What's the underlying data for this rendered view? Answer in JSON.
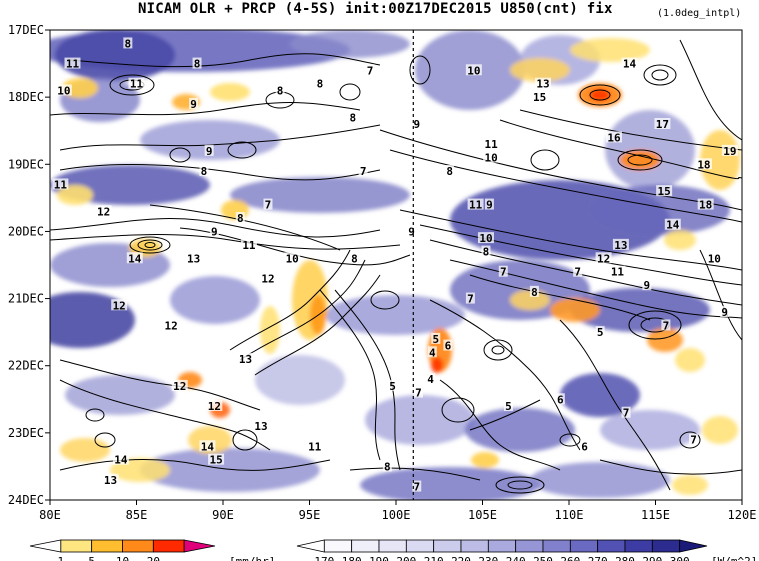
{
  "title": {
    "main": "NICAM  OLR + PRCP (4-5S) init:00Z17DEC2015 U850(cnt) fix",
    "sub": "(1.0deg_intpl)"
  },
  "chart_data": {
    "type": "heatmap",
    "title": "NICAM  OLR + PRCP (4-5S) init:00Z17DEC2015 U850(cnt) fix",
    "subtitle": "(1.0deg_intpl)",
    "x_ticks": [
      "80E",
      "85E",
      "90E",
      "95E",
      "100E",
      "105E",
      "110E",
      "115E",
      "120E"
    ],
    "x_values": [
      80,
      85,
      90,
      95,
      100,
      105,
      110,
      115,
      120
    ],
    "xlim": [
      80,
      120
    ],
    "y_ticks": [
      "17DEC",
      "18DEC",
      "19DEC",
      "20DEC",
      "21DEC",
      "22DEC",
      "23DEC",
      "24DEC"
    ],
    "y_values": [
      17,
      18,
      19,
      20,
      21,
      22,
      23,
      24
    ],
    "ylim": [
      17,
      24
    ],
    "reference_line_x": 101,
    "precip_colorbar": {
      "labels": [
        "1",
        "5",
        "10",
        "20"
      ],
      "unit": "[mm/hr]",
      "colors": [
        "#ffffff",
        "#ffe680",
        "#ffbe30",
        "#ff8a1a",
        "#ff2a00",
        "#e0007a"
      ]
    },
    "olr_colorbar": {
      "labels": [
        "170",
        "180",
        "190",
        "200",
        "210",
        "220",
        "230",
        "240",
        "250",
        "260",
        "270",
        "280",
        "290",
        "300"
      ],
      "unit": "[W/m^2]",
      "colors": [
        "#1a1a78",
        "#2b2b90",
        "#3c3ca4",
        "#5252b4",
        "#6a6ac2",
        "#8080cc",
        "#9696d6",
        "#aaaadf",
        "#bcbce6",
        "#cccced",
        "#dadaf2",
        "#e6e6f6",
        "#f0f0fa",
        "#f8f8fd",
        "#ffffff"
      ]
    },
    "contour_labels": [
      {
        "text": "8",
        "x": 84.5,
        "y": 17.2
      },
      {
        "text": "8",
        "x": 88.5,
        "y": 17.5
      },
      {
        "text": "11",
        "x": 81.3,
        "y": 17.5
      },
      {
        "text": "11",
        "x": 85.0,
        "y": 17.8
      },
      {
        "text": "10",
        "x": 80.8,
        "y": 17.9
      },
      {
        "text": "9",
        "x": 88.3,
        "y": 18.1
      },
      {
        "text": "8",
        "x": 93.3,
        "y": 17.9
      },
      {
        "text": "8",
        "x": 95.6,
        "y": 17.8
      },
      {
        "text": "7",
        "x": 98.5,
        "y": 17.6
      },
      {
        "text": "8",
        "x": 97.5,
        "y": 18.3
      },
      {
        "text": "9",
        "x": 101.2,
        "y": 18.4
      },
      {
        "text": "10",
        "x": 104.5,
        "y": 17.6
      },
      {
        "text": "13",
        "x": 108.5,
        "y": 17.8
      },
      {
        "text": "15",
        "x": 108.3,
        "y": 18.0
      },
      {
        "text": "11",
        "x": 105.5,
        "y": 18.7
      },
      {
        "text": "10",
        "x": 105.5,
        "y": 18.9
      },
      {
        "text": "14",
        "x": 113.5,
        "y": 17.5
      },
      {
        "text": "17",
        "x": 115.4,
        "y": 18.4
      },
      {
        "text": "16",
        "x": 112.6,
        "y": 18.6
      },
      {
        "text": "19",
        "x": 119.3,
        "y": 18.8
      },
      {
        "text": "18",
        "x": 117.8,
        "y": 19.0
      },
      {
        "text": "15",
        "x": 115.5,
        "y": 19.4
      },
      {
        "text": "18",
        "x": 117.9,
        "y": 19.6
      },
      {
        "text": "14",
        "x": 116.0,
        "y": 19.9
      },
      {
        "text": "9",
        "x": 89.2,
        "y": 18.8
      },
      {
        "text": "8",
        "x": 88.9,
        "y": 19.1
      },
      {
        "text": "7",
        "x": 98.1,
        "y": 19.1
      },
      {
        "text": "8",
        "x": 103.1,
        "y": 19.1
      },
      {
        "text": "11",
        "x": 80.6,
        "y": 19.3
      },
      {
        "text": "12",
        "x": 83.1,
        "y": 19.7
      },
      {
        "text": "7",
        "x": 92.6,
        "y": 19.6
      },
      {
        "text": "8",
        "x": 91.0,
        "y": 19.8
      },
      {
        "text": "11",
        "x": 104.6,
        "y": 19.6
      },
      {
        "text": "9",
        "x": 105.4,
        "y": 19.6
      },
      {
        "text": "9",
        "x": 89.5,
        "y": 20.0
      },
      {
        "text": "11",
        "x": 91.5,
        "y": 20.2
      },
      {
        "text": "9",
        "x": 100.9,
        "y": 20.0
      },
      {
        "text": "10",
        "x": 105.2,
        "y": 20.1
      },
      {
        "text": "8",
        "x": 105.2,
        "y": 20.3
      },
      {
        "text": "10",
        "x": 94.0,
        "y": 20.4
      },
      {
        "text": "8",
        "x": 97.6,
        "y": 20.4
      },
      {
        "text": "13",
        "x": 113.0,
        "y": 20.2
      },
      {
        "text": "12",
        "x": 112.0,
        "y": 20.4
      },
      {
        "text": "11",
        "x": 112.8,
        "y": 20.6
      },
      {
        "text": "10",
        "x": 118.4,
        "y": 20.4
      },
      {
        "text": "14",
        "x": 84.9,
        "y": 20.4
      },
      {
        "text": "13",
        "x": 88.3,
        "y": 20.4
      },
      {
        "text": "12",
        "x": 92.6,
        "y": 20.7
      },
      {
        "text": "7",
        "x": 106.2,
        "y": 20.6
      },
      {
        "text": "7",
        "x": 110.5,
        "y": 20.6
      },
      {
        "text": "8",
        "x": 108.0,
        "y": 20.9
      },
      {
        "text": "9",
        "x": 114.5,
        "y": 20.8
      },
      {
        "text": "7",
        "x": 104.3,
        "y": 21.0
      },
      {
        "text": "12",
        "x": 84.0,
        "y": 21.1
      },
      {
        "text": "9",
        "x": 119.0,
        "y": 21.2
      },
      {
        "text": "12",
        "x": 87.0,
        "y": 21.4
      },
      {
        "text": "5",
        "x": 102.3,
        "y": 21.6
      },
      {
        "text": "6",
        "x": 103.0,
        "y": 21.7
      },
      {
        "text": "5",
        "x": 111.8,
        "y": 21.5
      },
      {
        "text": "7",
        "x": 115.6,
        "y": 21.4
      },
      {
        "text": "13",
        "x": 91.3,
        "y": 21.9
      },
      {
        "text": "4",
        "x": 102.1,
        "y": 21.8
      },
      {
        "text": "4",
        "x": 102.0,
        "y": 22.2
      },
      {
        "text": "12",
        "x": 87.5,
        "y": 22.3
      },
      {
        "text": "5",
        "x": 99.8,
        "y": 22.3
      },
      {
        "text": "7",
        "x": 101.3,
        "y": 22.4
      },
      {
        "text": "5",
        "x": 106.5,
        "y": 22.6
      },
      {
        "text": "6",
        "x": 109.5,
        "y": 22.5
      },
      {
        "text": "12",
        "x": 89.5,
        "y": 22.6
      },
      {
        "text": "7",
        "x": 113.3,
        "y": 22.7
      },
      {
        "text": "13",
        "x": 92.2,
        "y": 22.9
      },
      {
        "text": "11",
        "x": 95.3,
        "y": 23.2
      },
      {
        "text": "14",
        "x": 89.1,
        "y": 23.2
      },
      {
        "text": "6",
        "x": 110.9,
        "y": 23.2
      },
      {
        "text": "7",
        "x": 117.2,
        "y": 23.1
      },
      {
        "text": "14",
        "x": 84.1,
        "y": 23.4
      },
      {
        "text": "15",
        "x": 89.6,
        "y": 23.4
      },
      {
        "text": "8",
        "x": 99.5,
        "y": 23.5
      },
      {
        "text": "13",
        "x": 83.5,
        "y": 23.7
      },
      {
        "text": "7",
        "x": 101.2,
        "y": 23.8
      }
    ]
  }
}
